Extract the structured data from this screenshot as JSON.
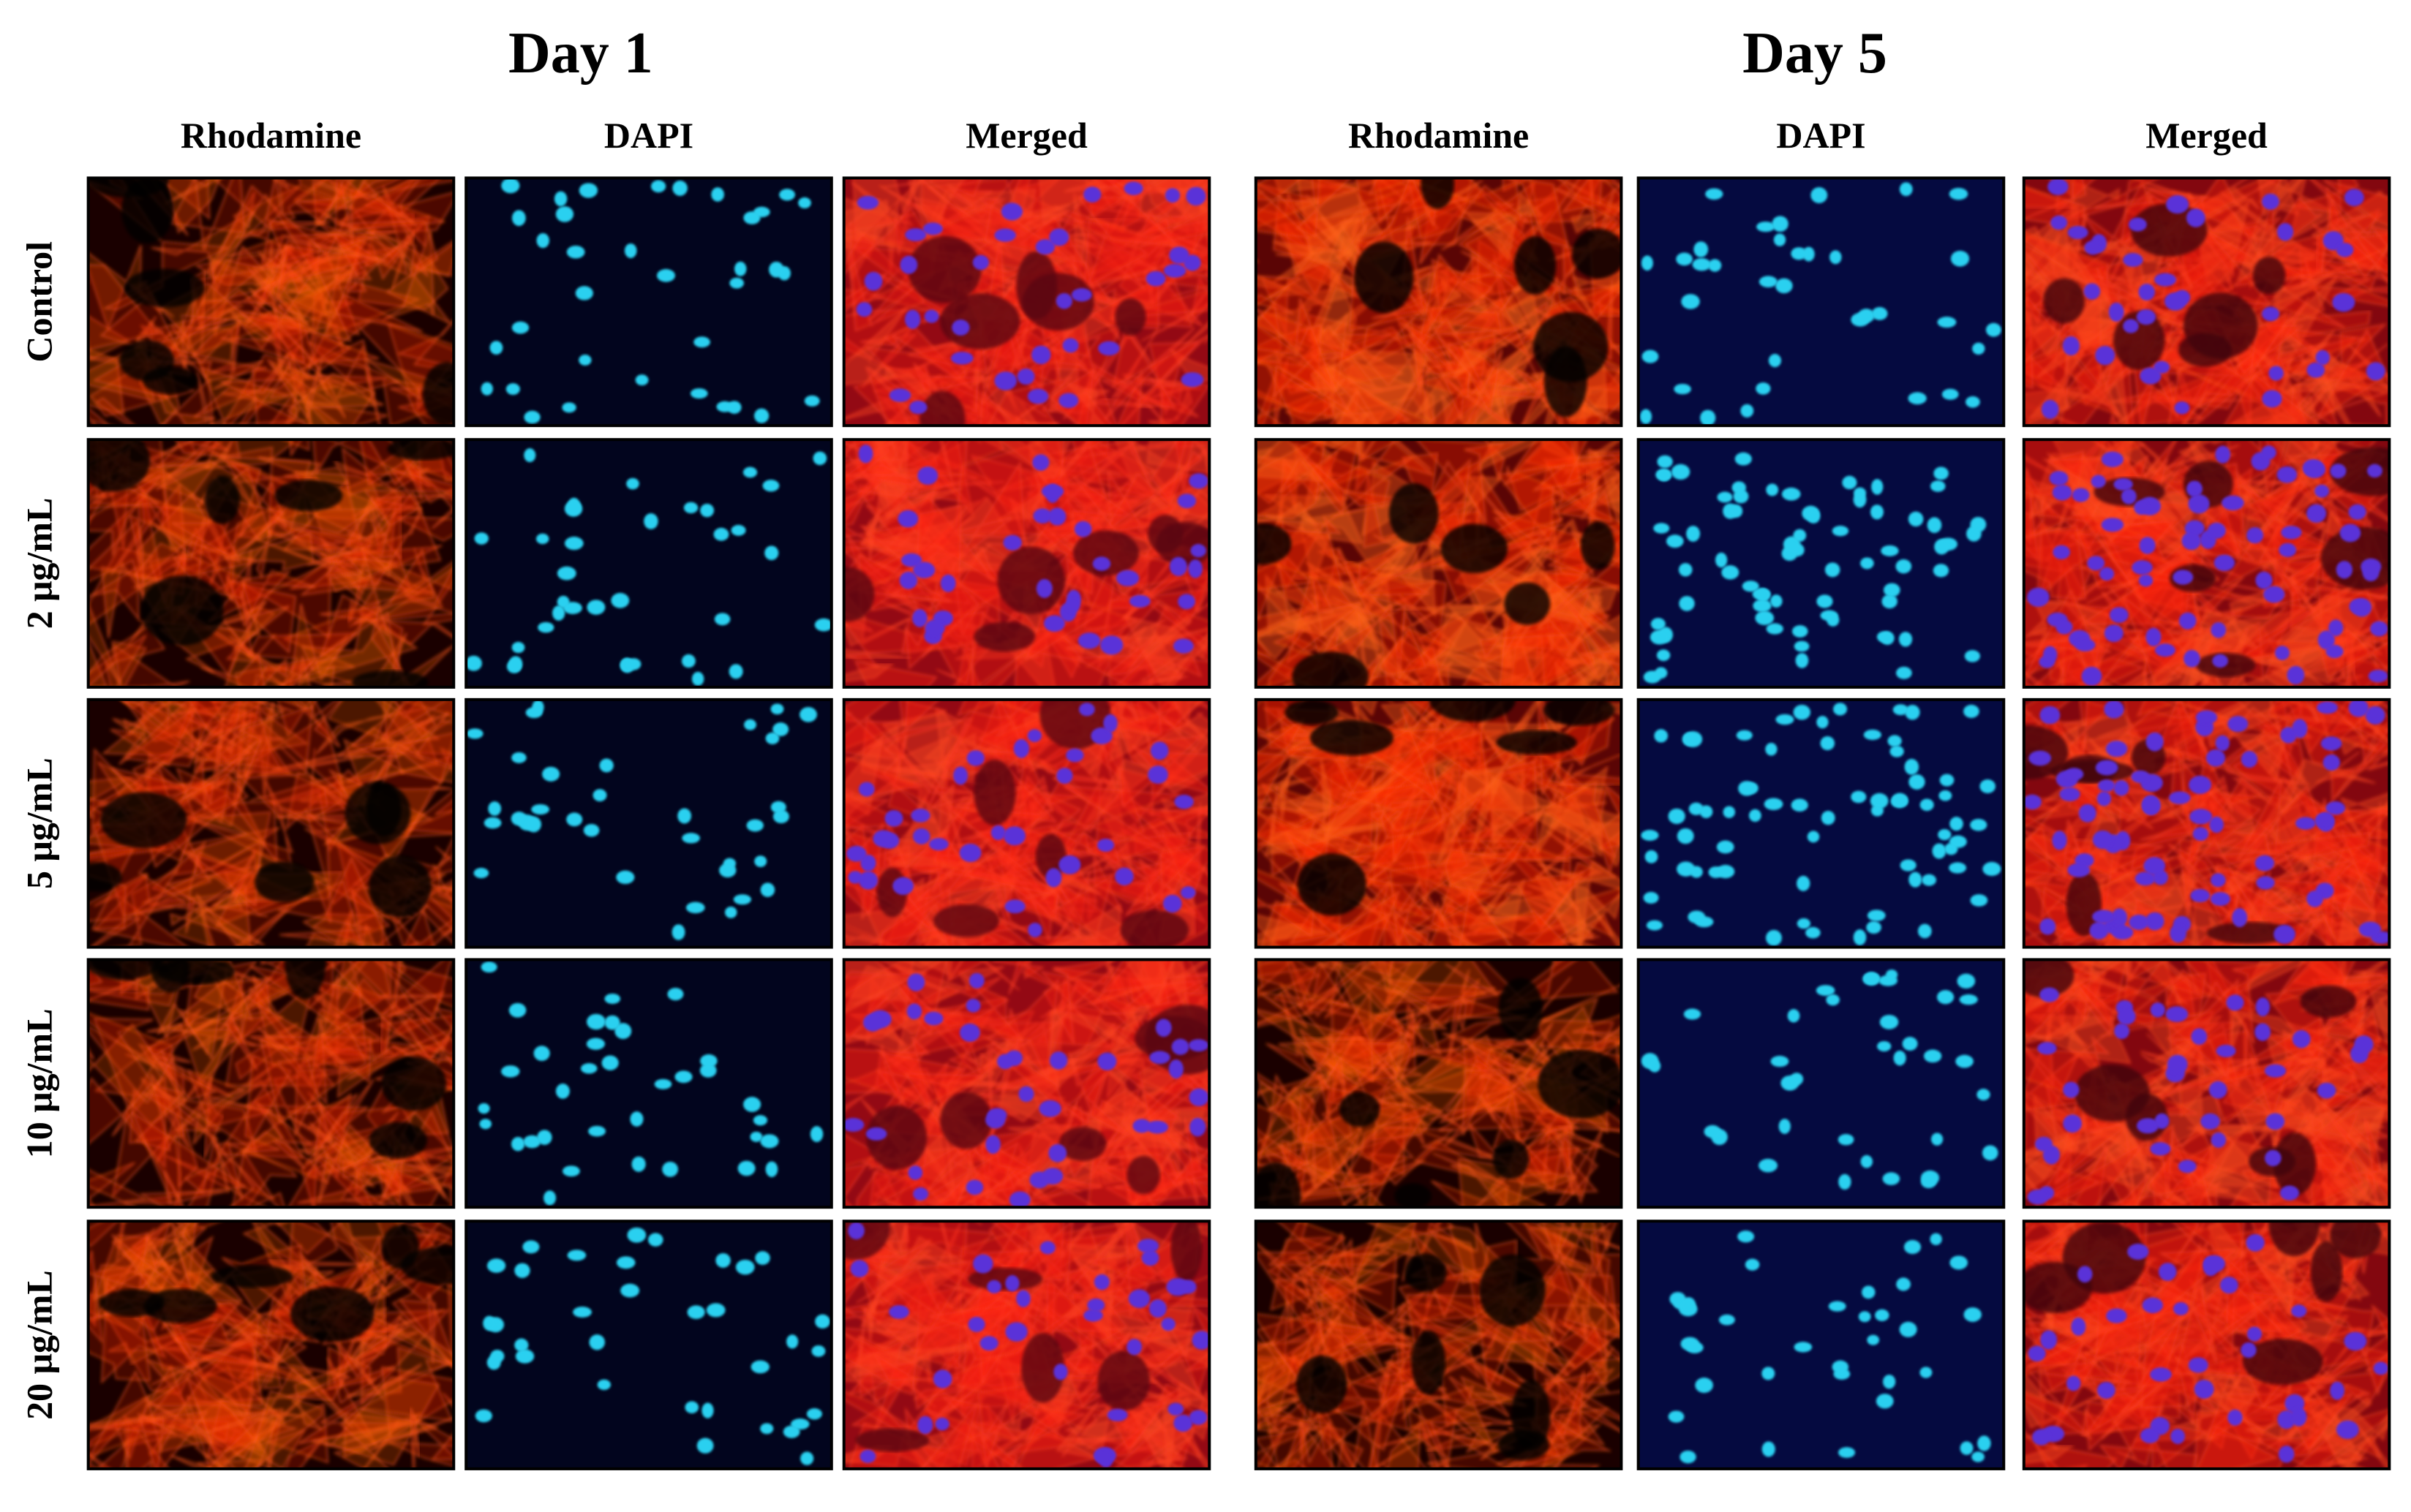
{
  "figure": {
    "groups": [
      {
        "title": "Day 1",
        "channels": [
          "Rhodamine",
          "DAPI",
          "Merged"
        ]
      },
      {
        "title": "Day 5",
        "channels": [
          "Rhodamine",
          "DAPI",
          "Merged"
        ]
      }
    ],
    "rows": [
      "Control",
      "2 μg/mL",
      "5 μg/mL",
      "10 μg/mL",
      "20 μg/mL"
    ]
  }
}
